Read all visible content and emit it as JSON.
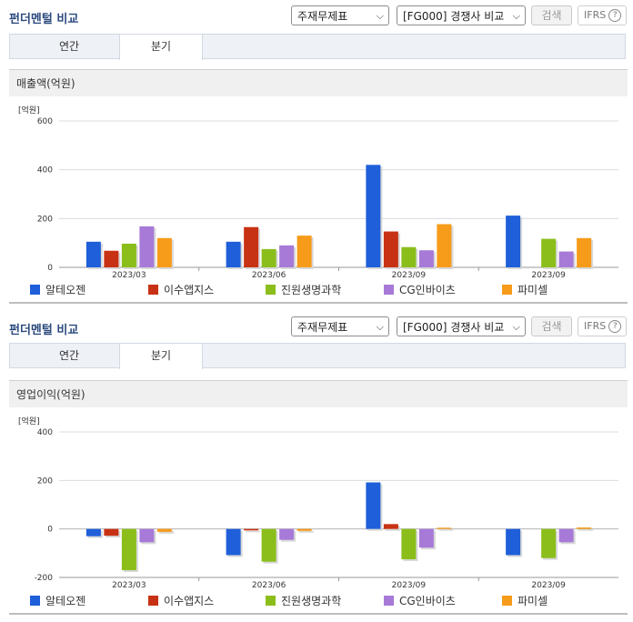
{
  "panels": [
    {
      "title": "펀더멘털 비교",
      "select1": "주재무제표",
      "select2": "[FG000] 경쟁사 비교",
      "search_label": "검색",
      "ifrs_label": "IFRS",
      "tabs": [
        "연간",
        "분기"
      ],
      "active_tab": 1,
      "chart_title": "매출액(억원)",
      "unit": "[억원]"
    },
    {
      "title": "펀더멘털 비교",
      "select1": "주재무제표",
      "select2": "[FG000] 경쟁사 비교",
      "search_label": "검색",
      "ifrs_label": "IFRS",
      "tabs": [
        "연간",
        "분기"
      ],
      "active_tab": 1,
      "chart_title": "영업이익(억원)",
      "unit": "[억원]"
    }
  ],
  "colors": [
    "#1f5fd9",
    "#c83214",
    "#8bbe1b",
    "#a77ad8",
    "#f79b1a"
  ],
  "chart_data": [
    {
      "type": "bar",
      "title": "매출액(억원)",
      "ylabel": "[억원]",
      "categories": [
        "2023/03",
        "2023/06",
        "2023/09",
        "2023/09"
      ],
      "ylim": [
        0,
        600
      ],
      "yticks": [
        0,
        200,
        400,
        600
      ],
      "grid": true,
      "legend": "bottom",
      "series": [
        {
          "name": "알테오젠",
          "values": [
            105,
            105,
            420,
            212
          ]
        },
        {
          "name": "이수앱지스",
          "values": [
            68,
            165,
            147,
            null
          ]
        },
        {
          "name": "진원생명과학",
          "values": [
            97,
            75,
            83,
            117
          ]
        },
        {
          "name": "CG인바이츠",
          "values": [
            168,
            90,
            70,
            65
          ]
        },
        {
          "name": "파미셀",
          "values": [
            120,
            130,
            177,
            120
          ]
        }
      ]
    },
    {
      "type": "bar",
      "title": "영업이익(억원)",
      "ylabel": "[억원]",
      "categories": [
        "2023/03",
        "2023/06",
        "2023/09",
        "2023/09"
      ],
      "ylim": [
        -200,
        400
      ],
      "yticks": [
        -200,
        0,
        200,
        400
      ],
      "grid": true,
      "legend": "bottom",
      "series": [
        {
          "name": "알테오젠",
          "values": [
            -30,
            -108,
            192,
            -108
          ]
        },
        {
          "name": "이수앱지스",
          "values": [
            -28,
            -6,
            20,
            null
          ]
        },
        {
          "name": "진원생명과학",
          "values": [
            -170,
            -135,
            -125,
            -120
          ]
        },
        {
          "name": "CG인바이츠",
          "values": [
            -55,
            -45,
            -77,
            -55
          ]
        },
        {
          "name": "파미셀",
          "values": [
            -12,
            -8,
            5,
            6
          ]
        }
      ]
    }
  ]
}
